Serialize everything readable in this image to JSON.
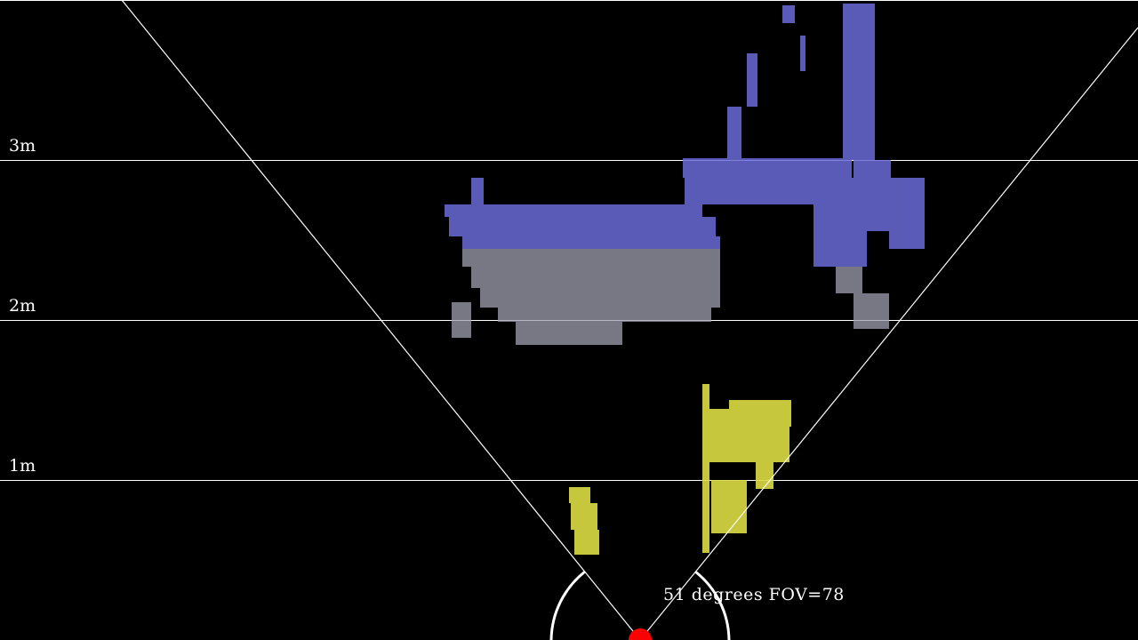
{
  "view": {
    "background_color": "#000000",
    "grid_color": "#ffffff",
    "sensor_color": "#ff0000",
    "far_points_color": "#6a6ad8",
    "mid_points_color": "#a0a0b0",
    "near_points_color": "#dddd44"
  },
  "distance_labels": [
    "3m",
    "2m",
    "1m"
  ],
  "icons": {
    "sensor": "sensor-dot-icon"
  },
  "readout": {
    "text": "51 degrees FOV=78"
  }
}
